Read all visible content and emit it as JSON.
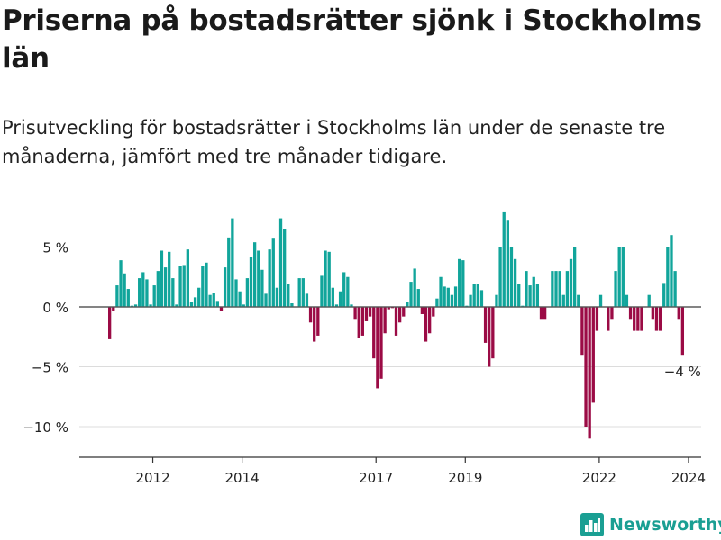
{
  "title": "Priserna på bostadsrätter sjönk i Stockholms län",
  "subtitle": "Prisutveckling för bostadsrätter i Stockholms län under de senaste tre månaderna, jämfört med tre månader tidigare.",
  "brand": {
    "name": "Newsworthy",
    "logo_icon": "bar-chart-logo-icon"
  },
  "colors": {
    "positive": "#11a59b",
    "negative": "#9b0b45",
    "grid": "#dcdcdc",
    "axis": "#333333",
    "text": "#222222"
  },
  "chart_data": {
    "type": "bar",
    "title": "Priserna på bostadsrätter sjönk i Stockholms län",
    "xlabel": "",
    "ylabel": "",
    "ylim": [
      -12.5,
      7.5
    ],
    "yticks": [
      5,
      0,
      -5,
      -10
    ],
    "ytick_labels": [
      "5 %",
      "0 %",
      "−5 %",
      "−10 %"
    ],
    "xtick_labels": [
      "2012",
      "2014",
      "2017",
      "2019",
      "2022",
      "2024"
    ],
    "xtick_years": [
      2012,
      2014,
      2017,
      2019,
      2022,
      2024
    ],
    "x_start_year": 2011,
    "months_per_bar": 1,
    "series": [
      {
        "name": "Prisutveckling (%)",
        "values": [
          -2.7,
          -0.3,
          1.8,
          3.9,
          2.8,
          1.5,
          0.1,
          0.2,
          2.4,
          2.9,
          2.3,
          0.2,
          1.8,
          3.0,
          4.7,
          3.3,
          4.6,
          2.4,
          0.2,
          3.4,
          3.5,
          4.8,
          0.4,
          0.8,
          1.6,
          3.4,
          3.7,
          1.0,
          1.2,
          0.5,
          -0.3,
          3.3,
          5.8,
          7.4,
          2.3,
          1.3,
          0.2,
          2.4,
          4.2,
          5.4,
          4.7,
          3.1,
          1.1,
          4.8,
          5.7,
          1.6,
          7.4,
          6.5,
          1.9,
          0.3,
          0,
          2.4,
          2.4,
          1.1,
          -1.3,
          -2.9,
          -2.4,
          2.6,
          4.7,
          4.6,
          1.6,
          0.2,
          1.3,
          2.9,
          2.5,
          0.2,
          -1.0,
          -2.6,
          -2.4,
          -1.2,
          -0.8,
          -4.3,
          -6.8,
          -6.0,
          -2.2,
          -0.2,
          -0.1,
          -2.4,
          -1.3,
          -0.8,
          0.4,
          2.1,
          3.2,
          1.5,
          -0.6,
          -2.9,
          -2.2,
          -0.8,
          0.7,
          2.5,
          1.7,
          1.6,
          1.0,
          1.7,
          4.0,
          3.9,
          0.1,
          1.0,
          1.9,
          1.9,
          1.4,
          -3.0,
          -5.0,
          -4.3,
          1.0,
          5.0,
          7.9,
          7.2,
          5.0,
          4.0,
          1.9,
          0.1,
          3.0,
          1.8,
          2.5,
          1.9,
          -1.0,
          -1.0,
          0,
          3.0,
          3.0,
          3.0,
          1.0,
          3.0,
          4.0,
          5.0,
          1.0,
          -4.0,
          -10.0,
          -11.0,
          -8.0,
          -2.0,
          1.0,
          0,
          -2.0,
          -1.0,
          3.0,
          5.0,
          5.0,
          1.0,
          -1.0,
          -2.0,
          -2.0,
          -2.0,
          0,
          1.0,
          -1.0,
          -2.0,
          -2.0,
          2.0,
          5.0,
          6.0,
          3.0,
          -1.0,
          -4.0
        ]
      }
    ],
    "annotations": [
      {
        "text": "−4 %",
        "target": "last-bar"
      }
    ]
  }
}
